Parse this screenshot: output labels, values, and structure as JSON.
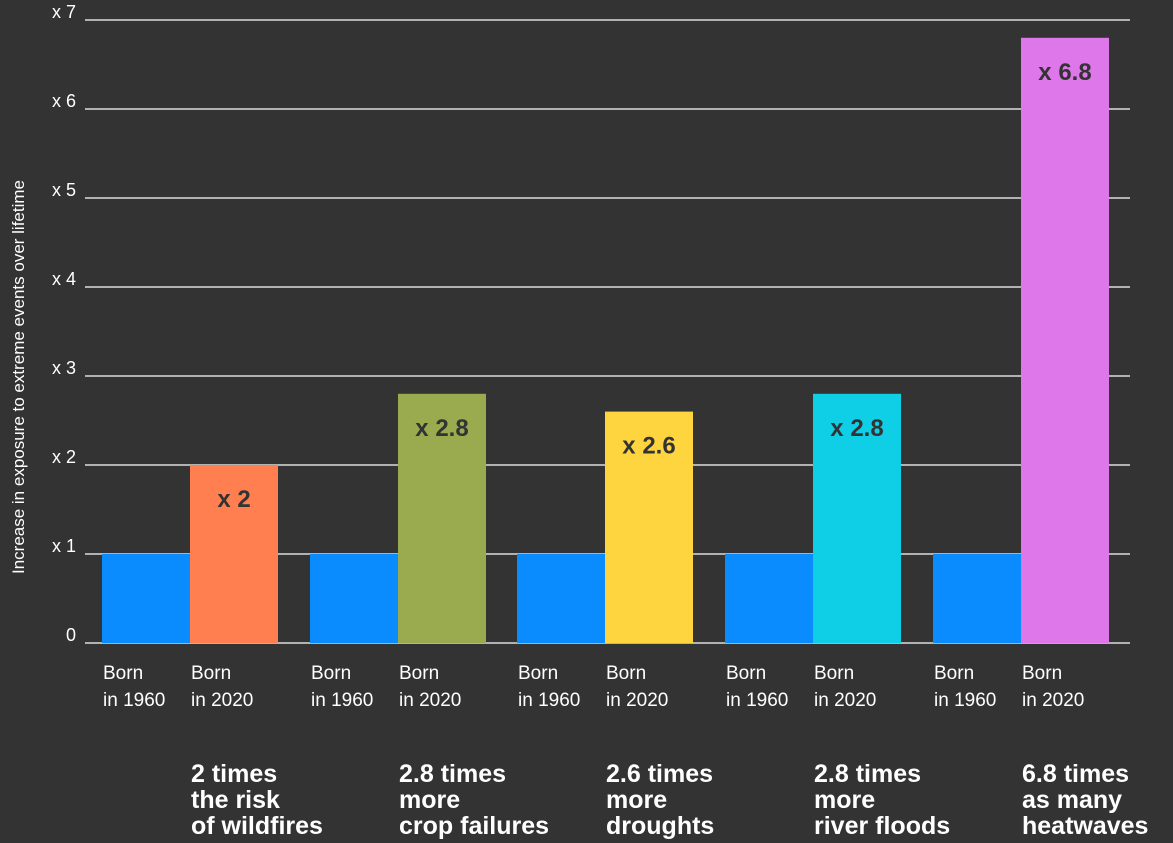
{
  "chart_data": {
    "type": "bar",
    "ylabel": "Increase in exposure to extreme events over lifetime",
    "ylim": [
      0,
      7
    ],
    "y_ticks": [
      0,
      1,
      2,
      3,
      4,
      5,
      6,
      7
    ],
    "y_tick_labels": [
      "0",
      "x 1",
      "x 2",
      "x 3",
      "x 4",
      "x 5",
      "x 6",
      "x 7"
    ],
    "grid": true,
    "groups": [
      {
        "bars": [
          {
            "label": [
              "Born",
              "in 1960"
            ],
            "value": 1,
            "color": "#0a8cff",
            "data_label": ""
          },
          {
            "label": [
              "Born",
              "in 2020"
            ],
            "value": 2,
            "color": "#ff7f50",
            "data_label": "x 2"
          }
        ],
        "summary": [
          "2 times",
          "the risk",
          "of wildfires"
        ]
      },
      {
        "bars": [
          {
            "label": [
              "Born",
              "in 1960"
            ],
            "value": 1,
            "color": "#0a8cff",
            "data_label": ""
          },
          {
            "label": [
              "Born",
              "in 2020"
            ],
            "value": 2.8,
            "color": "#9aaa4e",
            "data_label": "x 2.8"
          }
        ],
        "summary": [
          "2.8 times",
          "more",
          "crop failures"
        ]
      },
      {
        "bars": [
          {
            "label": [
              "Born",
              "in 1960"
            ],
            "value": 1,
            "color": "#0a8cff",
            "data_label": ""
          },
          {
            "label": [
              "Born",
              "in 2020"
            ],
            "value": 2.6,
            "color": "#ffd53f",
            "data_label": "x 2.6"
          }
        ],
        "summary": [
          "2.6 times",
          "more",
          "droughts"
        ]
      },
      {
        "bars": [
          {
            "label": [
              "Born",
              "in 1960"
            ],
            "value": 1,
            "color": "#0a8cff",
            "data_label": ""
          },
          {
            "label": [
              "Born",
              "in 2020"
            ],
            "value": 2.8,
            "color": "#0ecfe6",
            "data_label": "x 2.8"
          }
        ],
        "summary": [
          "2.8 times",
          "more",
          "river floods"
        ]
      },
      {
        "bars": [
          {
            "label": [
              "Born",
              "in 1960"
            ],
            "value": 1,
            "color": "#0a8cff",
            "data_label": ""
          },
          {
            "label": [
              "Born",
              "in 2020"
            ],
            "value": 6.8,
            "color": "#dd77ea",
            "data_label": "x 6.8"
          }
        ],
        "summary": [
          "6.8 times",
          "as many",
          "heatwaves"
        ]
      }
    ]
  },
  "colors": {
    "background": "#333333",
    "gridline": "#ffffff",
    "text": "#ffffff",
    "data_label": "#333333"
  }
}
